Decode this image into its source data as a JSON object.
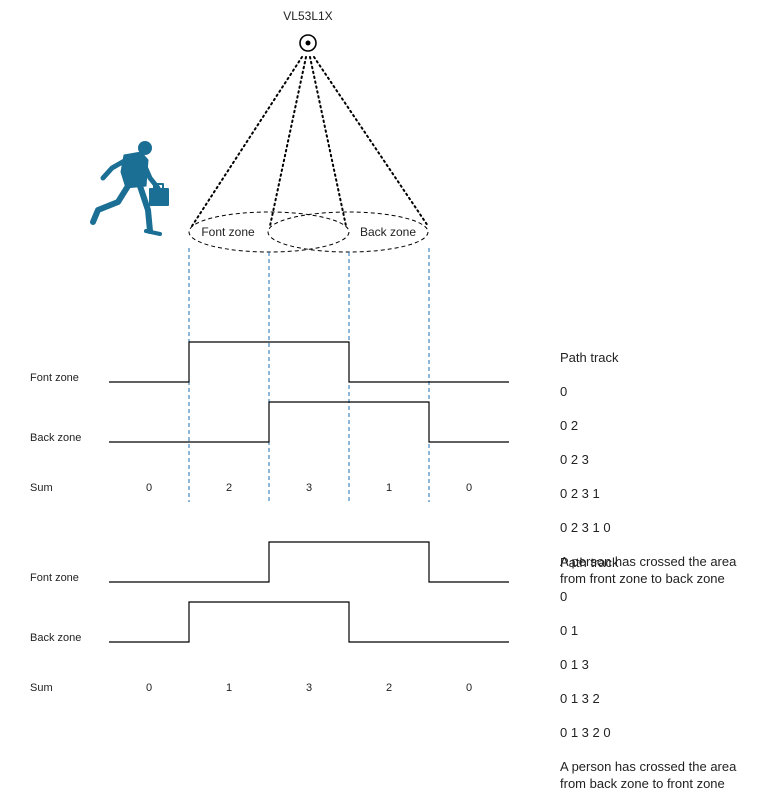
{
  "sensor": {
    "label": "VL53L1X",
    "icon": "sensor-target-icon"
  },
  "person_icon": "running-businessman-icon",
  "zones": {
    "front_label": "Font zone",
    "back_label": "Back zone"
  },
  "colors": {
    "line": "#000000",
    "guide": "#1f6fb5",
    "person": "#1b6e94",
    "text": "#222222"
  },
  "timing_1": {
    "row_labels": {
      "front": "Font zone",
      "back": "Back zone",
      "sum": "Sum"
    },
    "front_signal": [
      0,
      1,
      1,
      0,
      0
    ],
    "back_signal": [
      0,
      0,
      1,
      1,
      0
    ],
    "sums": [
      "0",
      "2",
      "3",
      "1",
      "0"
    ],
    "path_track": {
      "title": "Path track",
      "steps": [
        "0",
        "0 2",
        "0 2 3",
        "0 2 3 1",
        "0 2 3 1 0"
      ],
      "message": "A person has crossed the area from front zone to back zone"
    }
  },
  "timing_2": {
    "row_labels": {
      "front": "Font zone",
      "back": "Back zone",
      "sum": "Sum"
    },
    "front_signal": [
      0,
      0,
      1,
      1,
      0
    ],
    "back_signal": [
      0,
      1,
      1,
      0,
      0
    ],
    "sums": [
      "0",
      "1",
      "3",
      "2",
      "0"
    ],
    "path_track": {
      "title": "Path track",
      "steps": [
        "0",
        "0 1",
        "0 1 3",
        "0 1 3 2",
        "0 1 3 2 0"
      ],
      "message": "A person has crossed the area from back zone to front zone"
    }
  }
}
